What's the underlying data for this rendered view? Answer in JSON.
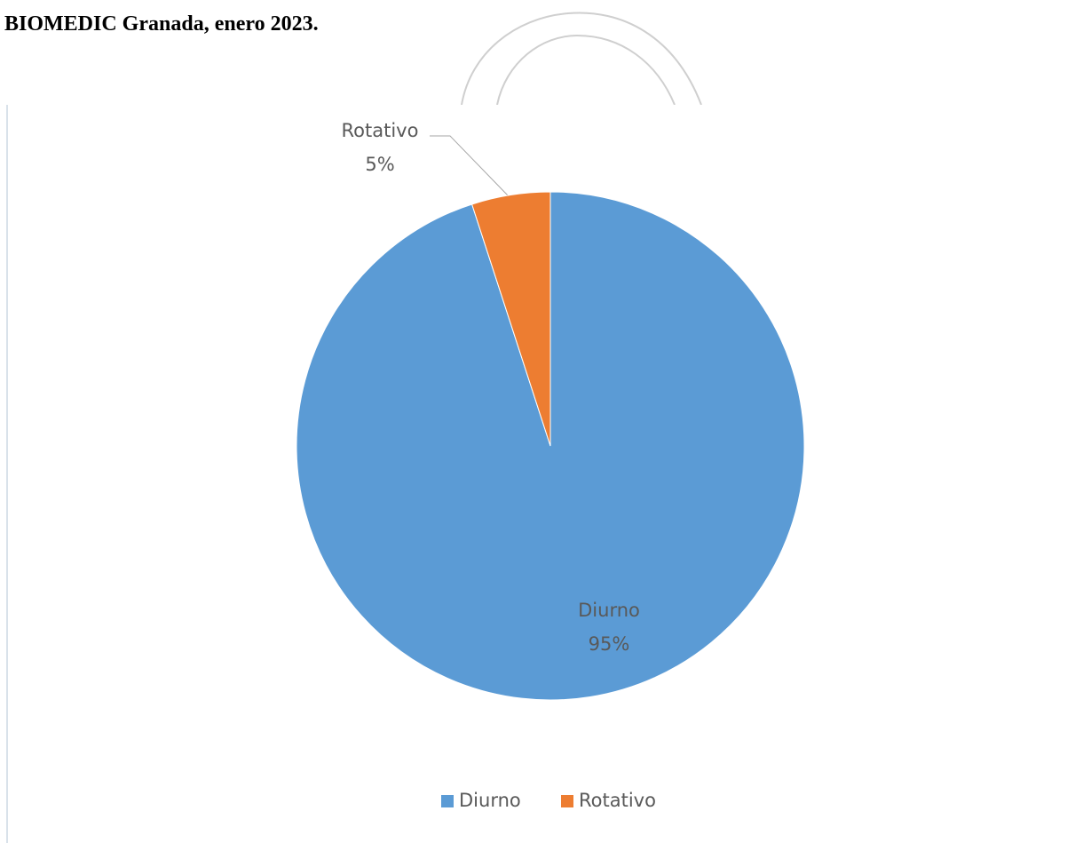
{
  "header": "BIOMEDIC Granada, enero 2023.",
  "chart_data": {
    "type": "pie",
    "categories": [
      "Diurno",
      "Rotativo"
    ],
    "values": [
      95,
      5
    ],
    "value_labels": [
      "95%",
      "5%"
    ],
    "colors": [
      "#5b9bd5",
      "#ed7d31"
    ],
    "legend": "bottom"
  }
}
